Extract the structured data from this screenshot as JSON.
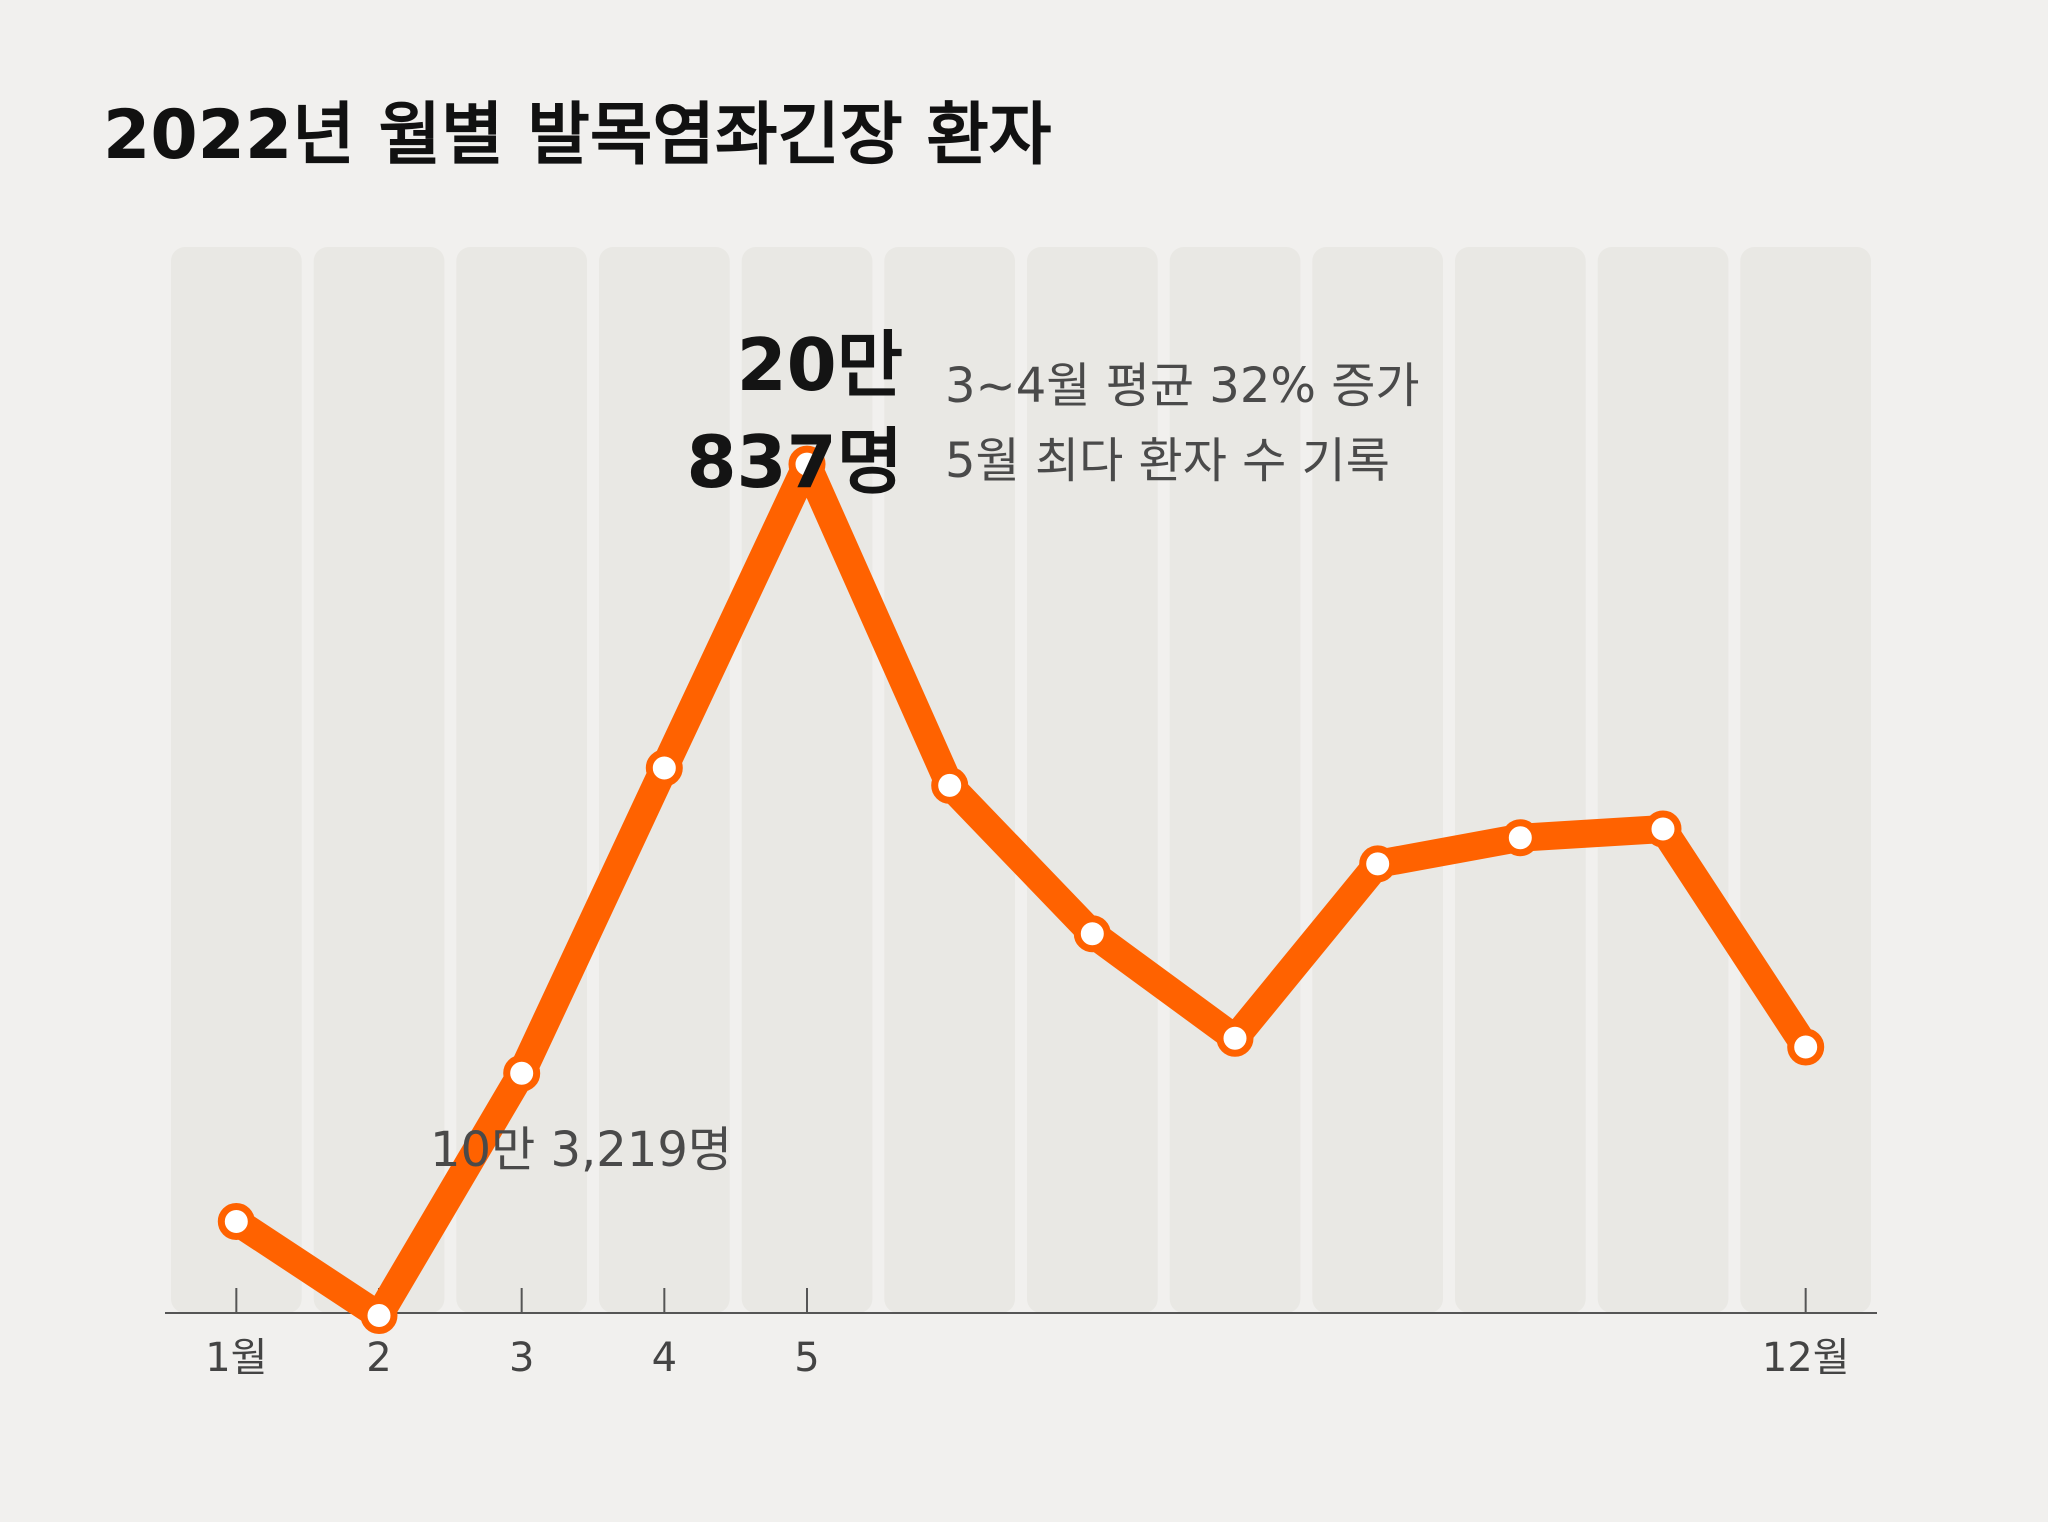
{
  "colors": {
    "background": "#f1f0ee",
    "column": "#e9e8e4",
    "line": "#ff6200",
    "marker_fill": "#ffffff",
    "axis": "#555555"
  },
  "chart_data": {
    "type": "line",
    "title": "2022년 월별 발목염좌긴장 환자",
    "x": [
      1,
      2,
      3,
      4,
      5,
      6,
      7,
      8,
      9,
      10,
      11,
      12
    ],
    "tick_labels": [
      "1월",
      "2",
      "3",
      "4",
      "5",
      "",
      "",
      "",
      "",
      "",
      "",
      "12월"
    ],
    "series": [
      {
        "values": [
          114000,
          103219,
          131000,
          166000,
          200837,
          164000,
          147000,
          135000,
          155000,
          158000,
          159000,
          134000
        ]
      }
    ],
    "ylim": [
      80000,
      220000
    ],
    "grid": false,
    "annotations": {
      "max": {
        "month": 5,
        "value_line1": "20만",
        "value_line2": "837명",
        "note_line1": "3~4월 평균 32% 증가",
        "note_line2": "5월 최다 환자 수 기록"
      },
      "min": {
        "month": 2,
        "label": "10만 3,219명"
      }
    }
  }
}
